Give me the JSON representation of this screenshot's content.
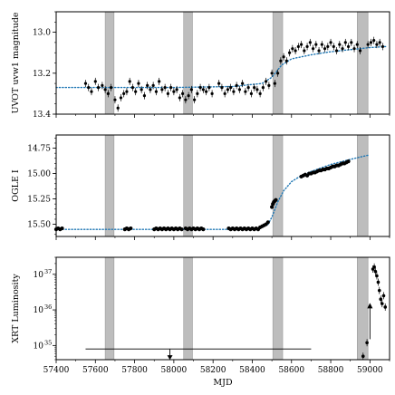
{
  "chart_data": [
    {
      "type": "scatter",
      "panel": "uvot",
      "ylabel": "UVOT uvw1 magnitude",
      "ylim": [
        13.4,
        12.9
      ],
      "inverted": true,
      "yticks": [
        13.0,
        13.2,
        13.4
      ],
      "ytick_labels": [
        "13.0",
        "13.2",
        "13.4"
      ],
      "shaded_spans": [
        [
          57650,
          57695
        ],
        [
          58050,
          58095
        ],
        [
          58505,
          58555
        ],
        [
          58935,
          58990
        ]
      ],
      "model_curve": {
        "style": "dotted",
        "color": "#1f77b4",
        "x": [
          57400,
          57700,
          58000,
          58300,
          58450,
          58500,
          58550,
          58600,
          58700,
          58800,
          58900,
          59000,
          59080
        ],
        "y": [
          13.27,
          13.27,
          13.27,
          13.265,
          13.25,
          13.22,
          13.16,
          13.13,
          13.11,
          13.095,
          13.085,
          13.075,
          13.07
        ]
      },
      "points": [
        [
          57550,
          13.25
        ],
        [
          57565,
          13.27
        ],
        [
          57580,
          13.29
        ],
        [
          57600,
          13.24
        ],
        [
          57615,
          13.27
        ],
        [
          57635,
          13.26
        ],
        [
          57650,
          13.28
        ],
        [
          57665,
          13.3
        ],
        [
          57680,
          13.27
        ],
        [
          57700,
          13.33
        ],
        [
          57715,
          13.37
        ],
        [
          57730,
          13.32
        ],
        [
          57745,
          13.3
        ],
        [
          57760,
          13.29
        ],
        [
          57775,
          13.24
        ],
        [
          57790,
          13.27
        ],
        [
          57805,
          13.29
        ],
        [
          57820,
          13.25
        ],
        [
          57835,
          13.28
        ],
        [
          57850,
          13.31
        ],
        [
          57865,
          13.26
        ],
        [
          57880,
          13.28
        ],
        [
          57895,
          13.26
        ],
        [
          57910,
          13.29
        ],
        [
          57925,
          13.24
        ],
        [
          57940,
          13.28
        ],
        [
          57955,
          13.27
        ],
        [
          57970,
          13.3
        ],
        [
          57985,
          13.27
        ],
        [
          58000,
          13.29
        ],
        [
          58015,
          13.28
        ],
        [
          58030,
          13.32
        ],
        [
          58045,
          13.3
        ],
        [
          58060,
          13.33
        ],
        [
          58075,
          13.31
        ],
        [
          58090,
          13.28
        ],
        [
          58105,
          13.33
        ],
        [
          58120,
          13.3
        ],
        [
          58135,
          13.27
        ],
        [
          58150,
          13.28
        ],
        [
          58165,
          13.29
        ],
        [
          58180,
          13.27
        ],
        [
          58195,
          13.3
        ],
        [
          58230,
          13.25
        ],
        [
          58245,
          13.27
        ],
        [
          58260,
          13.3
        ],
        [
          58275,
          13.28
        ],
        [
          58290,
          13.27
        ],
        [
          58305,
          13.29
        ],
        [
          58320,
          13.26
        ],
        [
          58335,
          13.28
        ],
        [
          58350,
          13.25
        ],
        [
          58365,
          13.29
        ],
        [
          58380,
          13.27
        ],
        [
          58395,
          13.3
        ],
        [
          58410,
          13.27
        ],
        [
          58425,
          13.28
        ],
        [
          58440,
          13.3
        ],
        [
          58455,
          13.27
        ],
        [
          58470,
          13.24
        ],
        [
          58485,
          13.26
        ],
        [
          58500,
          13.2
        ],
        [
          58515,
          13.25
        ],
        [
          58530,
          13.2
        ],
        [
          58545,
          13.14
        ],
        [
          58560,
          13.12
        ],
        [
          58575,
          13.14
        ],
        [
          58590,
          13.1
        ],
        [
          58605,
          13.08
        ],
        [
          58620,
          13.09
        ],
        [
          58635,
          13.07
        ],
        [
          58650,
          13.06
        ],
        [
          58665,
          13.09
        ],
        [
          58680,
          13.07
        ],
        [
          58695,
          13.05
        ],
        [
          58710,
          13.08
        ],
        [
          58725,
          13.06
        ],
        [
          58740,
          13.09
        ],
        [
          58755,
          13.06
        ],
        [
          58770,
          13.08
        ],
        [
          58785,
          13.07
        ],
        [
          58800,
          13.05
        ],
        [
          58815,
          13.07
        ],
        [
          58830,
          13.09
        ],
        [
          58845,
          13.06
        ],
        [
          58860,
          13.08
        ],
        [
          58875,
          13.05
        ],
        [
          58890,
          13.07
        ],
        [
          58905,
          13.05
        ],
        [
          58920,
          13.08
        ],
        [
          58935,
          13.06
        ],
        [
          58950,
          13.09
        ],
        [
          58990,
          13.06
        ],
        [
          59005,
          13.05
        ],
        [
          59020,
          13.04
        ],
        [
          59035,
          13.06
        ],
        [
          59050,
          13.05
        ],
        [
          59065,
          13.07
        ]
      ]
    },
    {
      "type": "scatter",
      "panel": "ogle",
      "ylabel": "OGLE I",
      "ylim": [
        15.62,
        14.62
      ],
      "inverted": true,
      "yticks": [
        14.75,
        15.0,
        15.25,
        15.5
      ],
      "ytick_labels": [
        "14.75",
        "15.00",
        "15.25",
        "15.50"
      ],
      "shaded_spans": [
        [
          57650,
          57695
        ],
        [
          58050,
          58095
        ],
        [
          58505,
          58555
        ],
        [
          58935,
          58990
        ]
      ],
      "model_curve": {
        "style": "dotted",
        "color": "#1f77b4",
        "x": [
          57400,
          57700,
          58000,
          58300,
          58400,
          58450,
          58480,
          58500,
          58530,
          58560,
          58600,
          58650,
          58700,
          58800,
          58900,
          58990
        ],
        "y": [
          15.55,
          15.55,
          15.55,
          15.55,
          15.545,
          15.53,
          15.5,
          15.43,
          15.28,
          15.17,
          15.08,
          15.02,
          14.98,
          14.91,
          14.86,
          14.82
        ]
      },
      "points": [
        [
          57400,
          15.55
        ],
        [
          57410,
          15.54
        ],
        [
          57420,
          15.55
        ],
        [
          57430,
          15.54
        ],
        [
          57750,
          15.55
        ],
        [
          57760,
          15.54
        ],
        [
          57770,
          15.55
        ],
        [
          57780,
          15.54
        ],
        [
          57900,
          15.55
        ],
        [
          57910,
          15.54
        ],
        [
          57920,
          15.55
        ],
        [
          57930,
          15.54
        ],
        [
          57940,
          15.55
        ],
        [
          57950,
          15.54
        ],
        [
          57960,
          15.55
        ],
        [
          57970,
          15.54
        ],
        [
          57980,
          15.55
        ],
        [
          57990,
          15.54
        ],
        [
          58000,
          15.55
        ],
        [
          58010,
          15.54
        ],
        [
          58020,
          15.55
        ],
        [
          58030,
          15.54
        ],
        [
          58040,
          15.55
        ],
        [
          58060,
          15.54
        ],
        [
          58070,
          15.55
        ],
        [
          58080,
          15.54
        ],
        [
          58090,
          15.55
        ],
        [
          58100,
          15.54
        ],
        [
          58110,
          15.55
        ],
        [
          58120,
          15.54
        ],
        [
          58130,
          15.55
        ],
        [
          58140,
          15.54
        ],
        [
          58150,
          15.55
        ],
        [
          58280,
          15.54
        ],
        [
          58290,
          15.55
        ],
        [
          58300,
          15.54
        ],
        [
          58310,
          15.55
        ],
        [
          58320,
          15.54
        ],
        [
          58330,
          15.55
        ],
        [
          58340,
          15.54
        ],
        [
          58350,
          15.55
        ],
        [
          58360,
          15.54
        ],
        [
          58370,
          15.55
        ],
        [
          58380,
          15.54
        ],
        [
          58390,
          15.55
        ],
        [
          58400,
          15.54
        ],
        [
          58410,
          15.55
        ],
        [
          58420,
          15.54
        ],
        [
          58430,
          15.55
        ],
        [
          58440,
          15.53
        ],
        [
          58450,
          15.52
        ],
        [
          58460,
          15.51
        ],
        [
          58470,
          15.5
        ],
        [
          58480,
          15.48
        ],
        [
          58500,
          15.33
        ],
        [
          58505,
          15.3
        ],
        [
          58510,
          15.28
        ],
        [
          58515,
          15.27
        ],
        [
          58520,
          15.26
        ],
        [
          58650,
          15.03
        ],
        [
          58660,
          15.02
        ],
        [
          58670,
          15.01
        ],
        [
          58680,
          15.02
        ],
        [
          58690,
          15.0
        ],
        [
          58700,
          15.0
        ],
        [
          58710,
          14.99
        ],
        [
          58720,
          14.99
        ],
        [
          58730,
          14.98
        ],
        [
          58740,
          14.97
        ],
        [
          58750,
          14.97
        ],
        [
          58760,
          14.96
        ],
        [
          58770,
          14.96
        ],
        [
          58780,
          14.95
        ],
        [
          58790,
          14.95
        ],
        [
          58800,
          14.94
        ],
        [
          58810,
          14.93
        ],
        [
          58820,
          14.93
        ],
        [
          58830,
          14.92
        ],
        [
          58840,
          14.92
        ],
        [
          58850,
          14.91
        ],
        [
          58860,
          14.9
        ],
        [
          58870,
          14.9
        ],
        [
          58880,
          14.89
        ],
        [
          58890,
          14.88
        ]
      ]
    },
    {
      "type": "scatter",
      "panel": "xrt",
      "ylabel": "XRT Luminosity",
      "xlabel": "MJD",
      "log_y": true,
      "ylim": [
        4e+34,
        3e+37
      ],
      "yticks": [
        1e+35,
        1e+36,
        1e+37
      ],
      "ytick_labels": [
        "10",
        "10",
        "10"
      ],
      "ytick_exponents": [
        "35",
        "36",
        "37"
      ],
      "xlim": [
        57400,
        59100
      ],
      "xticks": [
        57400,
        57600,
        57800,
        58000,
        58200,
        58400,
        58600,
        58800,
        59000
      ],
      "xtick_labels": [
        "57400",
        "57600",
        "57800",
        "58000",
        "58200",
        "58400",
        "58600",
        "58800",
        "59000"
      ],
      "shaded_spans": [
        [
          57650,
          57695
        ],
        [
          58050,
          58095
        ],
        [
          58505,
          58555
        ],
        [
          58935,
          58990
        ]
      ],
      "upper_limit": {
        "x_start": 57550,
        "x_end": 58700,
        "y": 8e+34,
        "arrow_x": 57980
      },
      "points": [
        [
          58965,
          5e+34
        ],
        [
          58985,
          1.2e+35
        ],
        [
          59000,
          1.4e+36,
          "ul"
        ],
        [
          59015,
          1.4e+37
        ],
        [
          59022,
          1.6e+37
        ],
        [
          59028,
          1.2e+37
        ],
        [
          59035,
          9e+36
        ],
        [
          59042,
          6e+36
        ],
        [
          59048,
          3.5e+36
        ],
        [
          59055,
          2e+36
        ],
        [
          59062,
          1.5e+36
        ],
        [
          59070,
          2.5e+36
        ],
        [
          59078,
          1.2e+36
        ]
      ]
    }
  ]
}
